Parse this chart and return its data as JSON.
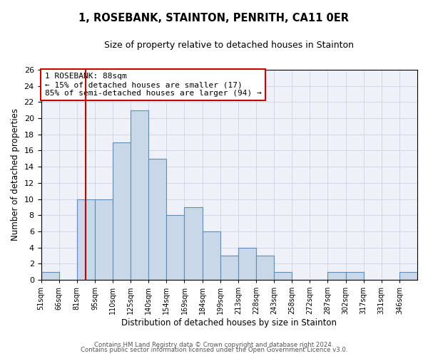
{
  "title": "1, ROSEBANK, STAINTON, PENRITH, CA11 0ER",
  "subtitle": "Size of property relative to detached houses in Stainton",
  "xlabel": "Distribution of detached houses by size in Stainton",
  "ylabel": "Number of detached properties",
  "bin_labels": [
    "51sqm",
    "66sqm",
    "81sqm",
    "95sqm",
    "110sqm",
    "125sqm",
    "140sqm",
    "154sqm",
    "169sqm",
    "184sqm",
    "199sqm",
    "213sqm",
    "228sqm",
    "243sqm",
    "258sqm",
    "272sqm",
    "287sqm",
    "302sqm",
    "317sqm",
    "331sqm",
    "346sqm"
  ],
  "bar_values": [
    1,
    0,
    10,
    10,
    17,
    21,
    15,
    8,
    9,
    6,
    3,
    4,
    3,
    1,
    0,
    0,
    1,
    1,
    0,
    0,
    1
  ],
  "bar_color": "#c8d8e8",
  "bar_edge_color": "#5b8db8",
  "vline_index": 3,
  "vline_color": "#cc0000",
  "annotation_line1": "1 ROSEBANK: 88sqm",
  "annotation_line2": "← 15% of detached houses are smaller (17)",
  "annotation_line3": "85% of semi-detached houses are larger (94) →",
  "annotation_box_edge_color": "#cc0000",
  "ylim": [
    0,
    26
  ],
  "yticks": [
    0,
    2,
    4,
    6,
    8,
    10,
    12,
    14,
    16,
    18,
    20,
    22,
    24,
    26
  ],
  "grid_color": "#d0d8e8",
  "background_color": "#eef2f8",
  "footer_line1": "Contains HM Land Registry data © Crown copyright and database right 2024.",
  "footer_line2": "Contains public sector information licensed under the Open Government Licence v3.0."
}
